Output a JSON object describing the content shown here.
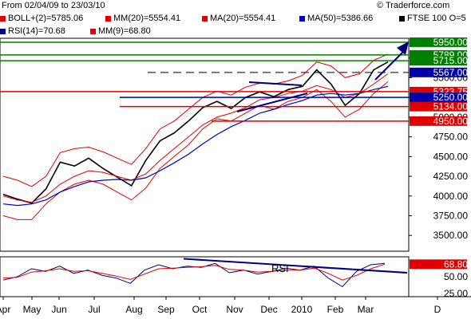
{
  "header": {
    "date_range": "From 02/04/09 to 23/03/10",
    "watermark": "© Traderforce.com"
  },
  "legend": [
    {
      "label": "BOLL+(2)=5785.06",
      "color": "#e00000"
    },
    {
      "label": "MM(20)=5554.41",
      "color": "#e00000"
    },
    {
      "label": "MA(20)=5554.41",
      "color": "#e00000"
    },
    {
      "label": "MA(50)=5386.66",
      "color": "#0000cc"
    },
    {
      "label": "FTSE 100 O=5",
      "color": "#000000"
    },
    {
      "label": "RSI(14)=70.68",
      "color": "#000080"
    },
    {
      "label": "MM(9)=68.80",
      "color": "#e00000"
    }
  ],
  "chart_data": [
    {
      "type": "line",
      "title": "",
      "x_labels": [
        "Apr",
        "May",
        "Jun",
        "Jul",
        "Aug",
        "Sep",
        "Oct",
        "Nov",
        "Dec",
        "2010",
        "Feb",
        "Mar",
        "D"
      ],
      "y_ticks": [
        3500,
        3750,
        4000,
        4250,
        4500,
        4750,
        5000,
        5250,
        5500,
        5750
      ],
      "ylim": [
        3300,
        6000
      ],
      "series": [
        {
          "values": [
            4020,
            3960,
            3910,
            4090,
            4430,
            4380,
            4480,
            4350,
            4240,
            4130,
            4450,
            4700,
            4800,
            4950,
            5120,
            5200,
            5110,
            5250,
            5320,
            5260,
            5350,
            5390,
            5600,
            5420,
            5150,
            5300,
            5600,
            5700
          ]
        },
        {
          "values": [
            4250,
            4200,
            4120,
            4250,
            4550,
            4600,
            4620,
            4560,
            4480,
            4400,
            4600,
            4850,
            4950,
            5100,
            5250,
            5330,
            5280,
            5380,
            5430,
            5420,
            5460,
            5530,
            5700,
            5650,
            5500,
            5550,
            5720,
            5800
          ]
        },
        {
          "values": [
            3750,
            3700,
            3700,
            3900,
            4050,
            4150,
            4200,
            4150,
            4050,
            3950,
            4100,
            4350,
            4500,
            4650,
            4850,
            4980,
            4950,
            5050,
            5150,
            5100,
            5200,
            5250,
            5350,
            5200,
            5000,
            5100,
            5300,
            5450
          ]
        },
        {
          "values": [
            4000,
            3950,
            3920,
            4000,
            4150,
            4250,
            4320,
            4300,
            4250,
            4200,
            4280,
            4450,
            4600,
            4750,
            4900,
            5000,
            5050,
            5120,
            5220,
            5250,
            5300,
            5330,
            5400,
            5350,
            5250,
            5300,
            5420,
            5550
          ]
        },
        {
          "values": [
            3900,
            3880,
            3900,
            3950,
            4050,
            4120,
            4180,
            4200,
            4210,
            4200,
            4230,
            4320,
            4420,
            4530,
            4660,
            4780,
            4880,
            4960,
            5050,
            5100,
            5160,
            5210,
            5280,
            5300,
            5280,
            5300,
            5350,
            5390
          ]
        }
      ],
      "horizontal_levels": [
        {
          "value": 5950,
          "label": "5950.00",
          "color": "#008000"
        },
        {
          "value": 5789,
          "label": "5789.00",
          "color": "#008000"
        },
        {
          "value": 5715,
          "label": "5715.00",
          "color": "#008000"
        },
        {
          "value": 5567,
          "label": "5567.00",
          "color": "#0000aa"
        },
        {
          "value": 5323.75,
          "label": "5323.75",
          "color": "#e00000"
        },
        {
          "value": 5250,
          "label": "5250.00",
          "color": "#0000aa"
        },
        {
          "value": 5134,
          "label": "5134.00",
          "color": "#e00000"
        },
        {
          "value": 4950,
          "label": "4950.00",
          "color": "#e00000"
        }
      ]
    },
    {
      "type": "line",
      "title": "RSI",
      "y_ticks": [
        50,
        25
      ],
      "ylim": [
        20,
        80
      ],
      "series": [
        {
          "values": [
            45,
            50,
            62,
            58,
            66,
            55,
            60,
            52,
            48,
            40,
            60,
            68,
            62,
            66,
            64,
            70,
            56,
            60,
            54,
            58,
            63,
            60,
            66,
            48,
            35,
            58,
            68,
            70
          ]
        },
        {
          "values": [
            48,
            49,
            57,
            59,
            62,
            58,
            59,
            55,
            51,
            46,
            54,
            62,
            63,
            64,
            65,
            67,
            61,
            60,
            57,
            58,
            60,
            60,
            63,
            55,
            45,
            52,
            62,
            68.8
          ]
        }
      ],
      "current_label": "68.80"
    }
  ]
}
